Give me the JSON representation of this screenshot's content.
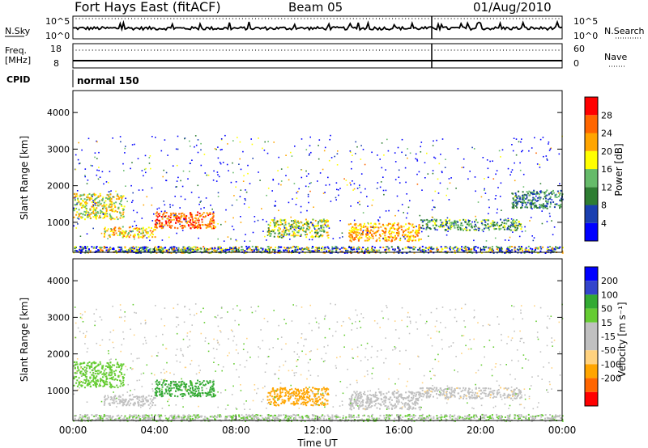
{
  "header": {
    "station": "Fort Hays East (fitACF)",
    "beam": "Beam 05",
    "date": "01/Aug/2010"
  },
  "noise_panel": {
    "left_label": "N.Sky",
    "right_label": "N.Search",
    "ticks_left": [
      "10^5",
      "10^0"
    ],
    "ticks_right": [
      "10^5",
      "10^0"
    ]
  },
  "freq_panel": {
    "left_label_1": "Freq.",
    "left_label_2": "[MHz]",
    "right_label": "Nave",
    "ticks_left": [
      "18",
      "8"
    ],
    "ticks_right": [
      "60",
      "0"
    ]
  },
  "cpid": {
    "label": "CPID",
    "mode": "normal 150"
  },
  "colors": {
    "power_scale": [
      "#0000ff",
      "#1a3fb0",
      "#2e7d32",
      "#66bb6a",
      "#ffff00",
      "#ffa500",
      "#ff6600",
      "#ff0000"
    ],
    "velocity_scale": [
      "#ff0000",
      "#ff6600",
      "#ffa500",
      "#ffd27f",
      "#c0c0c0",
      "#c0c0c0",
      "#66cc33",
      "#33aa33",
      "#3344cc",
      "#0000ff"
    ]
  },
  "chart_data": [
    {
      "type": "heatmap",
      "name": "power",
      "ylabel": "Slant Range [km]",
      "ylim": [
        180,
        4600
      ],
      "yticks": [
        "1000",
        "2000",
        "3000",
        "4000"
      ],
      "xlim_hours": [
        0,
        24
      ],
      "colorbar_label": "Power [dB]",
      "colorbar_ticks": [
        "4",
        "8",
        "12",
        "16",
        "20",
        "24",
        "28"
      ],
      "colorbar_range": [
        0,
        32
      ],
      "echo_regions": [
        {
          "t0": 0.0,
          "t1": 2.5,
          "r0": 1100,
          "r1": 1800,
          "level": 18
        },
        {
          "t0": 1.5,
          "t1": 4.0,
          "r0": 600,
          "r1": 900,
          "level": 20
        },
        {
          "t0": 4.0,
          "t1": 7.0,
          "r0": 850,
          "r1": 1300,
          "level": 26
        },
        {
          "t0": 2.5,
          "t1": 7.5,
          "r0": 180,
          "r1": 300,
          "level": 14
        },
        {
          "t0": 9.5,
          "t1": 12.5,
          "r0": 600,
          "r1": 1100,
          "level": 16
        },
        {
          "t0": 13.5,
          "t1": 17.0,
          "r0": 500,
          "r1": 1000,
          "level": 22
        },
        {
          "t0": 17.0,
          "t1": 22.0,
          "r0": 800,
          "r1": 1100,
          "level": 12
        },
        {
          "t0": 21.5,
          "t1": 24.0,
          "r0": 1400,
          "r1": 1900,
          "level": 10
        }
      ]
    },
    {
      "type": "heatmap",
      "name": "velocity",
      "ylabel": "Slant Range [km]",
      "ylim": [
        180,
        4600
      ],
      "yticks": [
        "1000",
        "2000",
        "3000",
        "4000"
      ],
      "xlim_hours": [
        0,
        24
      ],
      "xticks": [
        "00:00",
        "04:00",
        "08:00",
        "12:00",
        "16:00",
        "20:00",
        "00:00"
      ],
      "xlabel": "Time UT",
      "colorbar_label": "Velocity [m s⁻¹]",
      "colorbar_ticks": [
        "200",
        "100",
        "50",
        "15",
        "-15",
        "-50",
        "-100",
        "-200"
      ],
      "echo_regions": [
        {
          "t0": 0.0,
          "t1": 2.5,
          "r0": 1100,
          "r1": 1800,
          "level": 40
        },
        {
          "t0": 1.5,
          "t1": 4.0,
          "r0": 600,
          "r1": 900,
          "level": 0
        },
        {
          "t0": 4.0,
          "t1": 7.0,
          "r0": 850,
          "r1": 1300,
          "level": 60
        },
        {
          "t0": 9.5,
          "t1": 12.5,
          "r0": 600,
          "r1": 1100,
          "level": -80
        },
        {
          "t0": 13.5,
          "t1": 17.0,
          "r0": 500,
          "r1": 1000,
          "level": 0
        },
        {
          "t0": 17.0,
          "t1": 22.0,
          "r0": 800,
          "r1": 1100,
          "level": -10
        }
      ]
    }
  ]
}
